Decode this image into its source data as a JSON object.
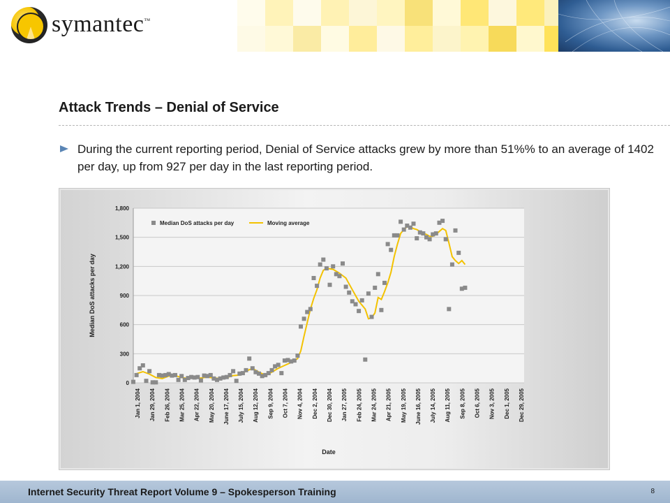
{
  "header": {
    "logo_text": "symantec",
    "logo_tm": "™",
    "mosaic_colors": [
      "#fff7c8",
      "#ffef9a",
      "#ffe66b",
      "#ffe050",
      "#f5d33a",
      "#fbf0b8",
      "#fdf6d6"
    ],
    "globe_color": "#4a77ab"
  },
  "slide": {
    "title": "Attack Trends – Denial of Service",
    "bullet": "During the current reporting period, Denial of Service attacks grew by more than 51%% to an average of 1402 per day, up from 927 per day in the last reporting period."
  },
  "footer": {
    "text": "Internet Security  Threat Report Volume 9 – Spokesperson Training",
    "page": "8"
  },
  "chart_data": {
    "type": "scatter",
    "xlabel": "Date",
    "ylabel": "Median DoS attacks per day",
    "ylim": [
      0,
      1800
    ],
    "yticks": [
      0,
      300,
      600,
      900,
      1200,
      1500,
      1800
    ],
    "ytick_labels": [
      "0",
      "300",
      "600",
      "900",
      "1,200",
      "1,500",
      "1,800"
    ],
    "grid": true,
    "legend_position": "top-left",
    "categories": [
      "Jan 1, 2004",
      "Jan 29, 2004",
      "Feb 26, 2004",
      "Mar 25, 2004",
      "Apr 22, 2004",
      "May 20, 2004",
      "June 17, 2004",
      "July 15, 2004",
      "Aug 12, 2004",
      "Sep 9, 2004",
      "Oct 7, 2004",
      "Nov 4, 2004",
      "Dec 2, 2004",
      "Dec 30, 2004",
      "Jan 27, 2005",
      "Feb 24, 2005",
      "Mar 24, 2005",
      "Apr 21, 2005",
      "May 19, 2005",
      "June 16, 2005",
      "July 14, 2005",
      "Aug 11, 2005",
      "Sep 8, 2005",
      "Oct 6, 2005",
      "Nov 3, 2005",
      "Dec 1, 2005",
      "Dec 29, 2005"
    ],
    "x_start": "2004-01-01",
    "x_end": "2005-12-29",
    "series": [
      {
        "name": "Median DoS attacks per day",
        "style": "square-marker",
        "color": "#8a8a8a",
        "points": [
          [
            "2004-01-01",
            10
          ],
          [
            "2004-01-07",
            80
          ],
          [
            "2004-01-13",
            150
          ],
          [
            "2004-01-19",
            180
          ],
          [
            "2004-01-25",
            20
          ],
          [
            "2004-01-31",
            120
          ],
          [
            "2004-02-06",
            5
          ],
          [
            "2004-02-12",
            5
          ],
          [
            "2004-02-18",
            80
          ],
          [
            "2004-02-24",
            75
          ],
          [
            "2004-03-01",
            80
          ],
          [
            "2004-03-07",
            90
          ],
          [
            "2004-03-13",
            75
          ],
          [
            "2004-03-19",
            80
          ],
          [
            "2004-03-25",
            30
          ],
          [
            "2004-03-31",
            70
          ],
          [
            "2004-04-06",
            30
          ],
          [
            "2004-04-12",
            50
          ],
          [
            "2004-04-18",
            60
          ],
          [
            "2004-04-24",
            55
          ],
          [
            "2004-04-30",
            60
          ],
          [
            "2004-05-06",
            25
          ],
          [
            "2004-05-12",
            75
          ],
          [
            "2004-05-18",
            70
          ],
          [
            "2004-05-24",
            80
          ],
          [
            "2004-05-30",
            45
          ],
          [
            "2004-06-05",
            30
          ],
          [
            "2004-06-11",
            45
          ],
          [
            "2004-06-17",
            55
          ],
          [
            "2004-06-23",
            60
          ],
          [
            "2004-06-29",
            80
          ],
          [
            "2004-07-05",
            120
          ],
          [
            "2004-07-11",
            20
          ],
          [
            "2004-07-17",
            95
          ],
          [
            "2004-07-23",
            100
          ],
          [
            "2004-07-29",
            130
          ],
          [
            "2004-08-04",
            250
          ],
          [
            "2004-08-10",
            150
          ],
          [
            "2004-08-16",
            110
          ],
          [
            "2004-08-22",
            95
          ],
          [
            "2004-08-28",
            70
          ],
          [
            "2004-09-03",
            80
          ],
          [
            "2004-09-09",
            100
          ],
          [
            "2004-09-15",
            130
          ],
          [
            "2004-09-21",
            170
          ],
          [
            "2004-09-27",
            185
          ],
          [
            "2004-10-03",
            100
          ],
          [
            "2004-10-09",
            230
          ],
          [
            "2004-10-15",
            235
          ],
          [
            "2004-10-21",
            220
          ],
          [
            "2004-10-27",
            230
          ],
          [
            "2004-11-02",
            280
          ],
          [
            "2004-11-08",
            580
          ],
          [
            "2004-11-14",
            660
          ],
          [
            "2004-11-20",
            730
          ],
          [
            "2004-11-26",
            760
          ],
          [
            "2004-12-02",
            1080
          ],
          [
            "2004-12-08",
            1000
          ],
          [
            "2004-12-14",
            1220
          ],
          [
            "2004-12-20",
            1270
          ],
          [
            "2004-12-26",
            1180
          ],
          [
            "2005-01-01",
            1010
          ],
          [
            "2005-01-07",
            1200
          ],
          [
            "2005-01-13",
            1120
          ],
          [
            "2005-01-19",
            1100
          ],
          [
            "2005-01-25",
            1230
          ],
          [
            "2005-01-31",
            990
          ],
          [
            "2005-02-06",
            930
          ],
          [
            "2005-02-12",
            840
          ],
          [
            "2005-02-18",
            810
          ],
          [
            "2005-02-24",
            740
          ],
          [
            "2005-03-02",
            850
          ],
          [
            "2005-03-08",
            240
          ],
          [
            "2005-03-14",
            920
          ],
          [
            "2005-03-20",
            680
          ],
          [
            "2005-03-26",
            980
          ],
          [
            "2005-04-01",
            1120
          ],
          [
            "2005-04-07",
            750
          ],
          [
            "2005-04-13",
            1030
          ],
          [
            "2005-04-19",
            1430
          ],
          [
            "2005-04-25",
            1370
          ],
          [
            "2005-05-01",
            1520
          ],
          [
            "2005-05-07",
            1520
          ],
          [
            "2005-05-13",
            1660
          ],
          [
            "2005-05-19",
            1580
          ],
          [
            "2005-05-25",
            1620
          ],
          [
            "2005-05-31",
            1600
          ],
          [
            "2005-06-06",
            1640
          ],
          [
            "2005-06-12",
            1490
          ],
          [
            "2005-06-18",
            1550
          ],
          [
            "2005-06-24",
            1540
          ],
          [
            "2005-06-30",
            1500
          ],
          [
            "2005-07-06",
            1480
          ],
          [
            "2005-07-12",
            1530
          ],
          [
            "2005-07-18",
            1540
          ],
          [
            "2005-07-24",
            1650
          ],
          [
            "2005-07-30",
            1670
          ],
          [
            "2005-08-05",
            1480
          ],
          [
            "2005-08-11",
            760
          ],
          [
            "2005-08-17",
            1220
          ],
          [
            "2005-08-23",
            1570
          ],
          [
            "2005-08-29",
            1340
          ],
          [
            "2005-09-04",
            970
          ],
          [
            "2005-09-10",
            980
          ]
        ]
      },
      {
        "name": "Moving average",
        "style": "line",
        "color": "#f3c200",
        "points": [
          [
            "2004-01-07",
            95
          ],
          [
            "2004-01-19",
            115
          ],
          [
            "2004-01-31",
            90
          ],
          [
            "2004-02-12",
            55
          ],
          [
            "2004-02-24",
            45
          ],
          [
            "2004-03-07",
            70
          ],
          [
            "2004-03-19",
            75
          ],
          [
            "2004-03-31",
            55
          ],
          [
            "2004-04-12",
            45
          ],
          [
            "2004-04-24",
            50
          ],
          [
            "2004-05-06",
            50
          ],
          [
            "2004-05-18",
            60
          ],
          [
            "2004-05-30",
            50
          ],
          [
            "2004-06-11",
            45
          ],
          [
            "2004-06-23",
            55
          ],
          [
            "2004-07-05",
            75
          ],
          [
            "2004-07-17",
            80
          ],
          [
            "2004-07-29",
            120
          ],
          [
            "2004-08-10",
            150
          ],
          [
            "2004-08-22",
            110
          ],
          [
            "2004-09-03",
            80
          ],
          [
            "2004-09-15",
            110
          ],
          [
            "2004-09-27",
            150
          ],
          [
            "2004-10-09",
            180
          ],
          [
            "2004-10-21",
            210
          ],
          [
            "2004-11-02",
            250
          ],
          [
            "2004-11-08",
            330
          ],
          [
            "2004-11-14",
            480
          ],
          [
            "2004-11-20",
            620
          ],
          [
            "2004-11-26",
            760
          ],
          [
            "2004-12-02",
            870
          ],
          [
            "2004-12-08",
            960
          ],
          [
            "2004-12-14",
            1080
          ],
          [
            "2004-12-20",
            1160
          ],
          [
            "2004-12-26",
            1180
          ],
          [
            "2005-01-07",
            1170
          ],
          [
            "2005-01-19",
            1130
          ],
          [
            "2005-01-31",
            1080
          ],
          [
            "2005-02-12",
            960
          ],
          [
            "2005-02-24",
            840
          ],
          [
            "2005-03-08",
            760
          ],
          [
            "2005-03-14",
            660
          ],
          [
            "2005-03-20",
            670
          ],
          [
            "2005-03-26",
            720
          ],
          [
            "2005-04-01",
            880
          ],
          [
            "2005-04-07",
            860
          ],
          [
            "2005-04-13",
            940
          ],
          [
            "2005-04-19",
            1030
          ],
          [
            "2005-04-25",
            1140
          ],
          [
            "2005-05-01",
            1300
          ],
          [
            "2005-05-07",
            1430
          ],
          [
            "2005-05-13",
            1540
          ],
          [
            "2005-05-19",
            1580
          ],
          [
            "2005-05-25",
            1610
          ],
          [
            "2005-05-31",
            1610
          ],
          [
            "2005-06-06",
            1590
          ],
          [
            "2005-06-12",
            1580
          ],
          [
            "2005-06-18",
            1560
          ],
          [
            "2005-06-24",
            1540
          ],
          [
            "2005-06-30",
            1530
          ],
          [
            "2005-07-06",
            1510
          ],
          [
            "2005-07-12",
            1510
          ],
          [
            "2005-07-18",
            1530
          ],
          [
            "2005-07-24",
            1560
          ],
          [
            "2005-07-30",
            1590
          ],
          [
            "2005-08-05",
            1570
          ],
          [
            "2005-08-11",
            1440
          ],
          [
            "2005-08-17",
            1300
          ],
          [
            "2005-08-23",
            1260
          ],
          [
            "2005-08-29",
            1230
          ],
          [
            "2005-09-04",
            1260
          ],
          [
            "2005-09-10",
            1220
          ]
        ]
      }
    ]
  }
}
